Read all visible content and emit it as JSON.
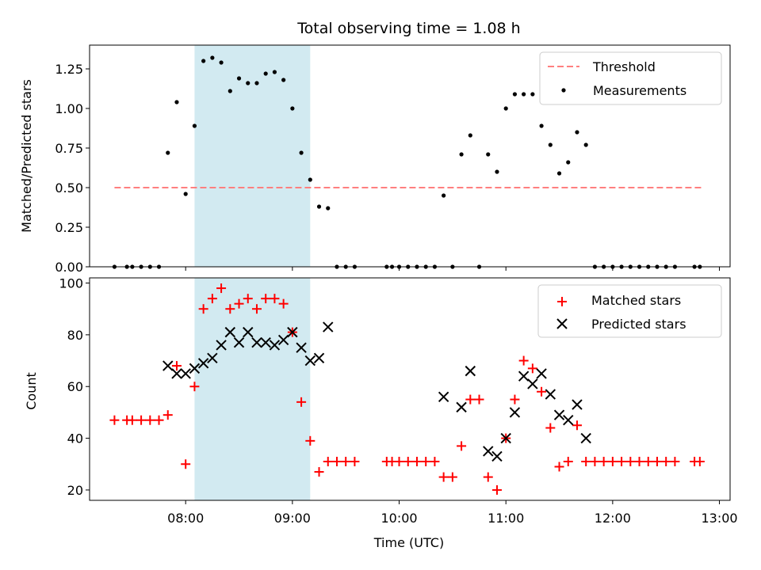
{
  "title": "Total observing time = 1.08 h",
  "xlabel": "Time (UTC)",
  "x_ticks": [
    "08:00",
    "09:00",
    "10:00",
    "11:00",
    "12:00",
    "13:00"
  ],
  "colors": {
    "threshold": "#ff7f7f",
    "measurements": "#000000",
    "matched": "#ff0000",
    "predicted": "#000000",
    "highlight": "#add8e6"
  },
  "chart_data": [
    {
      "type": "scatter",
      "ylabel": "Matched/Predicted stars",
      "xlim": [
        "07:06",
        "13:06"
      ],
      "ylim": [
        0,
        1.4
      ],
      "y_ticks": [
        "0.00",
        "0.25",
        "0.50",
        "0.75",
        "1.00",
        "1.25"
      ],
      "highlight_span": [
        "08:05",
        "09:10"
      ],
      "legend_position": "top-right",
      "threshold": {
        "name": "Threshold",
        "y": 0.5,
        "x_range": [
          "07:20",
          "12:50"
        ]
      },
      "series": [
        {
          "name": "Measurements",
          "points": [
            [
              "07:20",
              0
            ],
            [
              "07:27",
              0
            ],
            [
              "07:30",
              0
            ],
            [
              "07:35",
              0
            ],
            [
              "07:40",
              0
            ],
            [
              "07:45",
              0
            ],
            [
              "07:50",
              0.72
            ],
            [
              "07:55",
              1.04
            ],
            [
              "08:00",
              0.46
            ],
            [
              "08:05",
              0.89
            ],
            [
              "08:10",
              1.3
            ],
            [
              "08:15",
              1.32
            ],
            [
              "08:20",
              1.29
            ],
            [
              "08:25",
              1.11
            ],
            [
              "08:30",
              1.19
            ],
            [
              "08:35",
              1.16
            ],
            [
              "08:40",
              1.16
            ],
            [
              "08:45",
              1.22
            ],
            [
              "08:50",
              1.23
            ],
            [
              "08:55",
              1.18
            ],
            [
              "09:00",
              1.0
            ],
            [
              "09:05",
              0.72
            ],
            [
              "09:10",
              0.55
            ],
            [
              "09:15",
              0.38
            ],
            [
              "09:20",
              0.37
            ],
            [
              "09:25",
              0
            ],
            [
              "09:30",
              0
            ],
            [
              "09:35",
              0
            ],
            [
              "09:53",
              0
            ],
            [
              "09:56",
              0
            ],
            [
              "10:00",
              0
            ],
            [
              "10:05",
              0
            ],
            [
              "10:10",
              0
            ],
            [
              "10:15",
              0
            ],
            [
              "10:20",
              0
            ],
            [
              "10:25",
              0.45
            ],
            [
              "10:30",
              0
            ],
            [
              "10:35",
              0.71
            ],
            [
              "10:40",
              0.83
            ],
            [
              "10:45",
              0
            ],
            [
              "10:50",
              0.71
            ],
            [
              "10:55",
              0.6
            ],
            [
              "11:00",
              1.0
            ],
            [
              "11:05",
              1.09
            ],
            [
              "11:10",
              1.09
            ],
            [
              "11:15",
              1.09
            ],
            [
              "11:20",
              0.89
            ],
            [
              "11:25",
              0.77
            ],
            [
              "11:30",
              0.59
            ],
            [
              "11:35",
              0.66
            ],
            [
              "11:40",
              0.85
            ],
            [
              "11:45",
              0.77
            ],
            [
              "11:50",
              0
            ],
            [
              "11:55",
              0
            ],
            [
              "12:00",
              0
            ],
            [
              "12:05",
              0
            ],
            [
              "12:10",
              0
            ],
            [
              "12:15",
              0
            ],
            [
              "12:20",
              0
            ],
            [
              "12:25",
              0
            ],
            [
              "12:30",
              0
            ],
            [
              "12:35",
              0
            ],
            [
              "12:46",
              0
            ],
            [
              "12:49",
              0
            ]
          ]
        }
      ]
    },
    {
      "type": "scatter",
      "ylabel": "Count",
      "xlim": [
        "07:06",
        "13:06"
      ],
      "ylim": [
        16,
        102
      ],
      "y_ticks": [
        "20",
        "40",
        "60",
        "80",
        "100"
      ],
      "highlight_span": [
        "08:05",
        "09:10"
      ],
      "legend_position": "top-right",
      "series": [
        {
          "name": "Matched stars",
          "marker": "+",
          "points": [
            [
              "07:20",
              47
            ],
            [
              "07:27",
              47
            ],
            [
              "07:30",
              47
            ],
            [
              "07:35",
              47
            ],
            [
              "07:40",
              47
            ],
            [
              "07:45",
              47
            ],
            [
              "07:50",
              49
            ],
            [
              "07:55",
              68
            ],
            [
              "08:00",
              30
            ],
            [
              "08:05",
              60
            ],
            [
              "08:10",
              90
            ],
            [
              "08:15",
              94
            ],
            [
              "08:20",
              98
            ],
            [
              "08:25",
              90
            ],
            [
              "08:30",
              92
            ],
            [
              "08:35",
              94
            ],
            [
              "08:40",
              90
            ],
            [
              "08:45",
              94
            ],
            [
              "08:50",
              94
            ],
            [
              "08:55",
              92
            ],
            [
              "09:00",
              81
            ],
            [
              "09:05",
              54
            ],
            [
              "09:10",
              39
            ],
            [
              "09:15",
              27
            ],
            [
              "09:20",
              31
            ],
            [
              "09:25",
              31
            ],
            [
              "09:30",
              31
            ],
            [
              "09:35",
              31
            ],
            [
              "09:53",
              31
            ],
            [
              "09:56",
              31
            ],
            [
              "10:00",
              31
            ],
            [
              "10:05",
              31
            ],
            [
              "10:10",
              31
            ],
            [
              "10:15",
              31
            ],
            [
              "10:20",
              31
            ],
            [
              "10:25",
              25
            ],
            [
              "10:30",
              25
            ],
            [
              "10:35",
              37
            ],
            [
              "10:40",
              55
            ],
            [
              "10:45",
              55
            ],
            [
              "10:50",
              25
            ],
            [
              "10:55",
              20
            ],
            [
              "11:00",
              40
            ],
            [
              "11:05",
              55
            ],
            [
              "11:10",
              70
            ],
            [
              "11:15",
              67
            ],
            [
              "11:20",
              58
            ],
            [
              "11:25",
              44
            ],
            [
              "11:30",
              29
            ],
            [
              "11:35",
              31
            ],
            [
              "11:40",
              45
            ],
            [
              "11:45",
              31
            ],
            [
              "11:50",
              31
            ],
            [
              "11:55",
              31
            ],
            [
              "12:00",
              31
            ],
            [
              "12:05",
              31
            ],
            [
              "12:10",
              31
            ],
            [
              "12:15",
              31
            ],
            [
              "12:20",
              31
            ],
            [
              "12:25",
              31
            ],
            [
              "12:30",
              31
            ],
            [
              "12:35",
              31
            ],
            [
              "12:46",
              31
            ],
            [
              "12:49",
              31
            ]
          ]
        },
        {
          "name": "Predicted stars",
          "marker": "x",
          "points": [
            [
              "07:50",
              68
            ],
            [
              "07:55",
              65
            ],
            [
              "08:00",
              65
            ],
            [
              "08:05",
              67
            ],
            [
              "08:10",
              69
            ],
            [
              "08:15",
              71
            ],
            [
              "08:20",
              76
            ],
            [
              "08:25",
              81
            ],
            [
              "08:30",
              77
            ],
            [
              "08:35",
              81
            ],
            [
              "08:40",
              77
            ],
            [
              "08:45",
              77
            ],
            [
              "08:50",
              76
            ],
            [
              "08:55",
              78
            ],
            [
              "09:00",
              81
            ],
            [
              "09:05",
              75
            ],
            [
              "09:10",
              70
            ],
            [
              "09:15",
              71
            ],
            [
              "09:20",
              83
            ],
            [
              "10:25",
              56
            ],
            [
              "10:35",
              52
            ],
            [
              "10:40",
              66
            ],
            [
              "10:50",
              35
            ],
            [
              "10:55",
              33
            ],
            [
              "11:00",
              40
            ],
            [
              "11:05",
              50
            ],
            [
              "11:10",
              64
            ],
            [
              "11:15",
              61
            ],
            [
              "11:20",
              65
            ],
            [
              "11:25",
              57
            ],
            [
              "11:30",
              49
            ],
            [
              "11:35",
              47
            ],
            [
              "11:40",
              53
            ],
            [
              "11:45",
              40
            ]
          ]
        }
      ]
    }
  ]
}
